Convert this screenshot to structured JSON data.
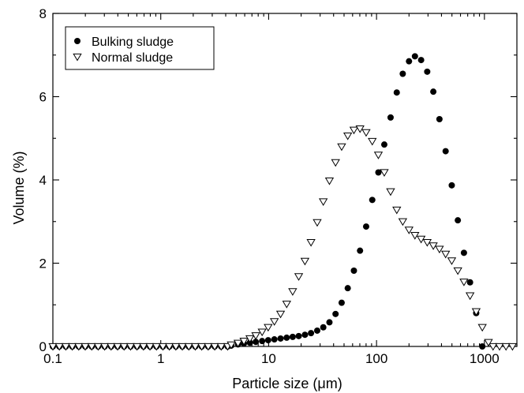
{
  "chart_data": {
    "type": "scatter",
    "xscale": "log",
    "xlim": [
      0.1,
      2000
    ],
    "ylim": [
      0,
      8
    ],
    "xlabel": "Particle size (μm)",
    "ylabel": "Volume (%)",
    "x_tick_labels": [
      "0.1",
      "1",
      "10",
      "100",
      "1000"
    ],
    "y_tick_labels": [
      "0",
      "2",
      "4",
      "6",
      "8"
    ],
    "legend_position": "top-left",
    "series": [
      {
        "name": "Bulking sludge",
        "marker": "filled-circle",
        "color": "#000000",
        "x": [
          4.5,
          5.2,
          5.9,
          6.7,
          7.6,
          8.7,
          9.9,
          11.3,
          12.9,
          14.7,
          16.7,
          19.0,
          21.7,
          24.7,
          28.2,
          32.1,
          36.6,
          41.7,
          47.5,
          54.1,
          61.7,
          70.3,
          80.1,
          91.3,
          104,
          118,
          135,
          154,
          175,
          200,
          227,
          259,
          295,
          336,
          383,
          437,
          498,
          567,
          646,
          736,
          839,
          956
        ],
        "y": [
          0.02,
          0.05,
          0.07,
          0.09,
          0.11,
          0.13,
          0.15,
          0.17,
          0.19,
          0.21,
          0.23,
          0.25,
          0.28,
          0.32,
          0.38,
          0.46,
          0.58,
          0.78,
          1.05,
          1.4,
          1.82,
          2.3,
          2.88,
          3.52,
          4.18,
          4.85,
          5.5,
          6.1,
          6.55,
          6.85,
          6.97,
          6.88,
          6.6,
          6.12,
          5.46,
          4.69,
          3.87,
          3.03,
          2.25,
          1.54,
          0.8,
          0.0
        ]
      },
      {
        "name": "Normal sludge",
        "marker": "open-triangle-down",
        "color": "#000000",
        "x": [
          4.5,
          5.2,
          5.9,
          6.7,
          7.6,
          8.7,
          9.9,
          11.3,
          12.9,
          14.7,
          16.7,
          19.0,
          21.7,
          24.7,
          28.2,
          32.1,
          36.6,
          41.7,
          47.5,
          54.1,
          61.7,
          70.3,
          80.1,
          91.3,
          104,
          118,
          135,
          154,
          175,
          200,
          227,
          259,
          295,
          336,
          383,
          437,
          498,
          567,
          646,
          736,
          839,
          956,
          1090
        ],
        "y": [
          0.04,
          0.08,
          0.13,
          0.19,
          0.26,
          0.35,
          0.46,
          0.6,
          0.78,
          1.02,
          1.32,
          1.68,
          2.05,
          2.5,
          2.98,
          3.48,
          3.98,
          4.42,
          4.8,
          5.06,
          5.2,
          5.23,
          5.14,
          4.93,
          4.6,
          4.18,
          3.72,
          3.28,
          3.0,
          2.8,
          2.67,
          2.58,
          2.5,
          2.42,
          2.34,
          2.22,
          2.06,
          1.82,
          1.55,
          1.22,
          0.84,
          0.46,
          0.1
        ]
      }
    ]
  }
}
